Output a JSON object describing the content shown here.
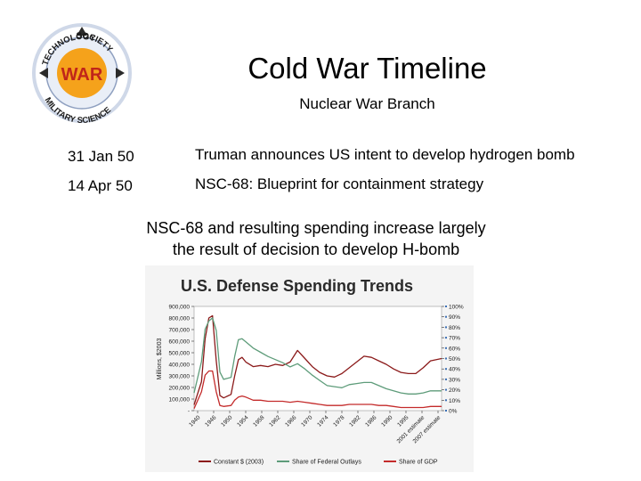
{
  "logo": {
    "top_text": "TECHNOLOGY",
    "right_text": "SOCIETY",
    "bottom_text": "MILITARY SCIENCE",
    "center_text": "WAR",
    "colors": {
      "ring": "#cfd8e8",
      "center": "#f5a21b",
      "center_text": "#c0251a",
      "arrows": "#2a2a2a"
    }
  },
  "header": {
    "title": "Cold War Timeline",
    "subtitle": "Nuclear War Branch"
  },
  "timeline": [
    {
      "date": "31 Jan 50",
      "event": "Truman announces US intent to develop hydrogen bomb"
    },
    {
      "date": "14 Apr 50",
      "event": "NSC-68: Blueprint for containment strategy"
    }
  ],
  "note": {
    "line1": "NSC-68 and resulting spending increase largely",
    "line2": "the result of decision to develop H-bomb"
  },
  "chart_data": {
    "type": "line",
    "title": "U.S. Defense Spending Trends",
    "ylabel": "Millions, $2003",
    "y_left_ticks": [
      "900,000",
      "800,000",
      "700,000",
      "600,000",
      "500,000",
      "400,000",
      "300,000",
      "200,000",
      "100,000",
      "-"
    ],
    "y_right_ticks": [
      "100%",
      "90%",
      "80%",
      "70%",
      "60%",
      "50%",
      "40%",
      "30%",
      "20%",
      "10%",
      "0%"
    ],
    "x_tick_labels": [
      "1940",
      "1946",
      "1950",
      "1954",
      "1958",
      "1962",
      "1966",
      "1970",
      "1974",
      "1978",
      "1982",
      "1986",
      "1990",
      "1995",
      "2001 estimate",
      "2007 estimate"
    ],
    "ylim_left": [
      0,
      900000
    ],
    "ylim_right": [
      0,
      100
    ],
    "x": [
      1940,
      1942,
      1943,
      1944,
      1945,
      1946,
      1947,
      1948,
      1950,
      1951,
      1952,
      1953,
      1954,
      1956,
      1958,
      1960,
      1962,
      1964,
      1966,
      1968,
      1970,
      1972,
      1974,
      1976,
      1978,
      1980,
      1982,
      1984,
      1986,
      1988,
      1990,
      1992,
      1994,
      1996,
      1998,
      2000,
      2002,
      2004,
      2007
    ],
    "series": [
      {
        "name": "Constant $ (2003)",
        "color": "#8b1a1a",
        "values": [
          50000,
          250000,
          620000,
          800000,
          820000,
          430000,
          130000,
          110000,
          140000,
          300000,
          440000,
          460000,
          420000,
          380000,
          390000,
          380000,
          400000,
          390000,
          420000,
          520000,
          450000,
          380000,
          330000,
          300000,
          290000,
          320000,
          370000,
          420000,
          470000,
          460000,
          430000,
          400000,
          360000,
          330000,
          320000,
          320000,
          370000,
          430000,
          450000
        ]
      },
      {
        "name": "Share of Federal Outlays",
        "color": "#5e9c7a",
        "values": [
          17,
          47,
          78,
          86,
          89,
          77,
          37,
          30,
          32,
          52,
          68,
          69,
          66,
          60,
          56,
          52,
          49,
          46,
          42,
          45,
          40,
          34,
          29,
          24,
          23,
          22,
          25,
          26,
          27,
          27,
          24,
          21,
          19,
          17,
          16,
          16,
          17,
          19,
          19
        ]
      },
      {
        "name": "Share of GDP",
        "color": "#c42b2b",
        "values": [
          2,
          18,
          34,
          38,
          38,
          18,
          5,
          4,
          5,
          10,
          13,
          14,
          13,
          10,
          10,
          9,
          9,
          9,
          8,
          9,
          8,
          7,
          6,
          5,
          5,
          5,
          6,
          6,
          6,
          6,
          5,
          5,
          4,
          3,
          3,
          3,
          3,
          4,
          4
        ]
      }
    ],
    "legend_position": "bottom"
  }
}
